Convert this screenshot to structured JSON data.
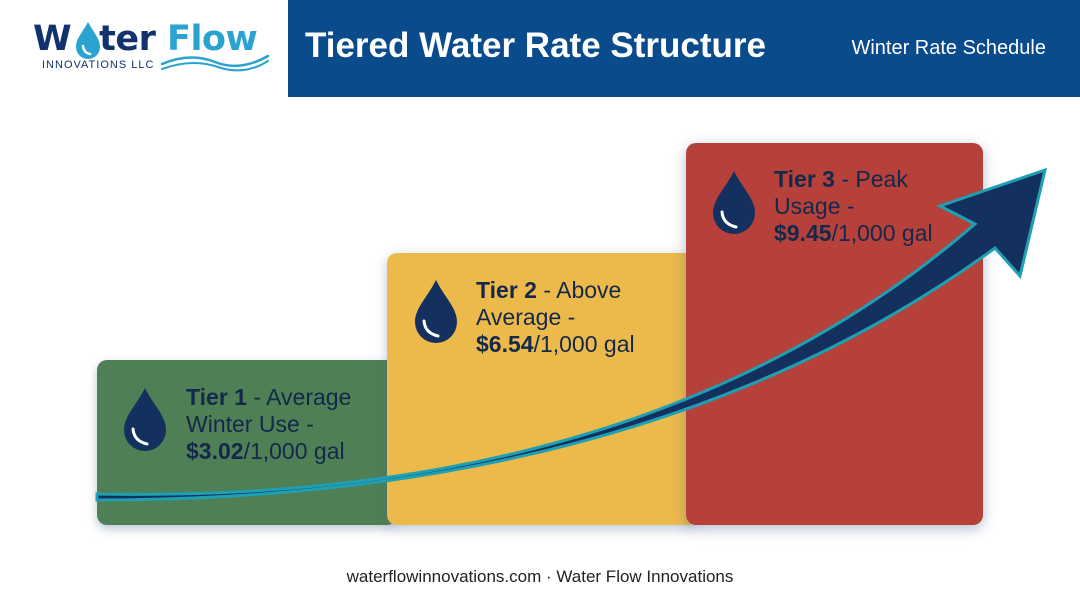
{
  "logo": {
    "word_part_1": "W",
    "word_part_2": "ter",
    "word_part_3": "Flow",
    "subtitle": "INNOVATIONS LLC"
  },
  "header": {
    "title": "Tiered Water Rate Structure",
    "subtitle": "Winter Rate Schedule"
  },
  "tiers": [
    {
      "label": "Tier 1",
      "line1_suffix": " - Average",
      "line2": "Winter Use -",
      "rate": "$3.02",
      "unit": "/1,000 gal",
      "color": "#4f7f55"
    },
    {
      "label": "Tier 2",
      "line1_suffix": " - Above",
      "line2": "Average -",
      "rate": "$6.54",
      "unit": "/1,000 gal",
      "color": "#ecba4b"
    },
    {
      "label": "Tier 3",
      "line1_suffix": " - Peak",
      "line2": "Usage -",
      "rate": "$9.45",
      "unit": "/1,000 gal",
      "color": "#b5413a"
    }
  ],
  "colors": {
    "navy": "#0a4b8c",
    "arrow": "#13305e",
    "arrow_outline": "#1e9fb3"
  },
  "footer": {
    "text": "waterflowinnovations.com · Water Flow Innovations"
  }
}
